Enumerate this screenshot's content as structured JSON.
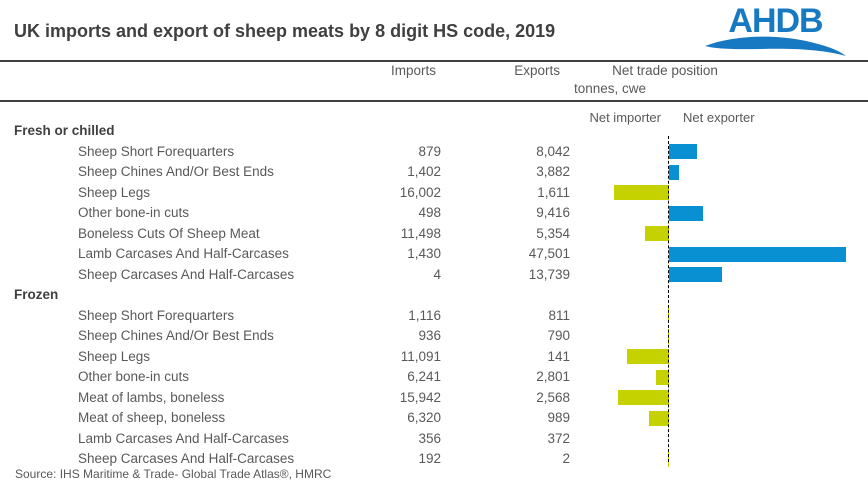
{
  "header": {
    "title": "UK imports and export of sheep meats by 8 digit HS code, 2019",
    "logo_text": "AHDB"
  },
  "columns": {
    "imports": "Imports",
    "exports": "Exports",
    "net_trade": "Net trade position",
    "unit": "tonnes, cwe",
    "net_importer": "Net importer",
    "net_exporter": "Net exporter"
  },
  "chart_data": {
    "type": "bar",
    "title": "UK imports and export of sheep meats by 8 digit HS code, 2019",
    "subtitle": "tonnes, cwe",
    "orientation": "horizontal-diverging",
    "xlabel": "Net trade position (exports minus imports), tonnes cwe",
    "xlim": [
      -18000,
      48000
    ],
    "legend": {
      "net_importer_color": "#c6d200",
      "net_exporter_color": "#0990d3"
    },
    "groups": [
      {
        "label": "Fresh or chilled",
        "rows": [
          {
            "label": "Sheep Short Forequarters",
            "imports": 879,
            "exports": 8042
          },
          {
            "label": "Sheep Chines And/Or Best Ends",
            "imports": 1402,
            "exports": 3882
          },
          {
            "label": "Sheep Legs",
            "imports": 16002,
            "exports": 1611
          },
          {
            "label": "Other bone-in cuts",
            "imports": 498,
            "exports": 9416
          },
          {
            "label": "Boneless Cuts Of Sheep Meat",
            "imports": 11498,
            "exports": 5354
          },
          {
            "label": "Lamb Carcases And Half-Carcases",
            "imports": 1430,
            "exports": 47501
          },
          {
            "label": "Sheep Carcases And Half-Carcases",
            "imports": 4,
            "exports": 13739
          }
        ]
      },
      {
        "label": "Frozen",
        "rows": [
          {
            "label": "Sheep Short Forequarters",
            "imports": 1116,
            "exports": 811
          },
          {
            "label": "Sheep Chines And/Or Best Ends",
            "imports": 936,
            "exports": 790
          },
          {
            "label": "Sheep Legs",
            "imports": 11091,
            "exports": 141
          },
          {
            "label": "Other bone-in cuts",
            "imports": 6241,
            "exports": 2801
          },
          {
            "label": "Meat of lambs, boneless",
            "imports": 15942,
            "exports": 2568
          },
          {
            "label": "Meat of sheep, boneless",
            "imports": 6320,
            "exports": 989
          },
          {
            "label": "Lamb Carcases And Half-Carcases",
            "imports": 356,
            "exports": 372
          },
          {
            "label": "Sheep Carcases And Half-Carcases",
            "imports": 192,
            "exports": 2
          }
        ]
      }
    ]
  },
  "footer": {
    "source": "Source: IHS Maritime & Trade- Global Trade Atlas®, HMRC"
  }
}
